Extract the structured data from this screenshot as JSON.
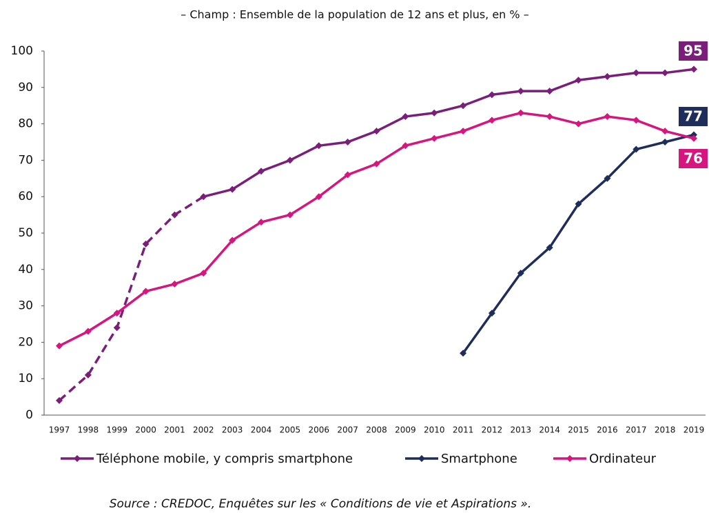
{
  "chart_data": {
    "type": "line",
    "subtitle": "– Champ : Ensemble de la population de 12 ans et plus, en % –",
    "source": "Source : CREDOC, Enquêtes sur les « Conditions de vie et Aspirations ».",
    "categories": [
      "1997",
      "1998",
      "1999",
      "2000",
      "2001",
      "2002",
      "2003",
      "2004",
      "2005",
      "2006",
      "2007",
      "2008",
      "2009",
      "2010",
      "2011",
      "2012",
      "2013",
      "2014",
      "2015",
      "2016",
      "2017",
      "2018",
      "2019"
    ],
    "series": [
      {
        "name": "Téléphone mobile, y compris smartphone",
        "color": "#7b1e7a",
        "dashed_through": "2002",
        "values": [
          4,
          11,
          24,
          47,
          55,
          60,
          62,
          67,
          70,
          74,
          75,
          78,
          82,
          83,
          85,
          88,
          89,
          89,
          92,
          93,
          94,
          94,
          95
        ]
      },
      {
        "name": "Smartphone",
        "color": "#1f2d5c",
        "values": [
          null,
          null,
          null,
          null,
          null,
          null,
          null,
          null,
          null,
          null,
          null,
          null,
          null,
          null,
          17,
          28,
          39,
          46,
          58,
          65,
          73,
          75,
          77
        ]
      },
      {
        "name": "Ordinateur",
        "color": "#d6157e",
        "values": [
          19,
          23,
          28,
          34,
          36,
          39,
          48,
          53,
          55,
          60,
          66,
          69,
          74,
          76,
          78,
          81,
          83,
          82,
          80,
          82,
          81,
          78,
          76
        ]
      }
    ],
    "ylim": [
      0,
      100
    ],
    "yticks": [
      0,
      10,
      20,
      30,
      40,
      50,
      60,
      70,
      80,
      90,
      100
    ],
    "grid": false
  }
}
